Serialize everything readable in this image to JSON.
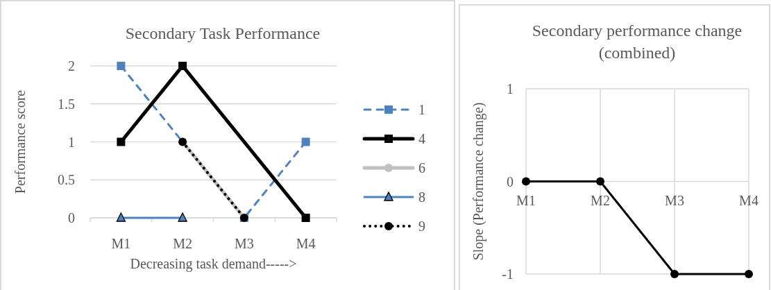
{
  "chart_data": [
    {
      "type": "line",
      "title": "Secondary Task Performance",
      "xlabel": "Decreasing task demand----->",
      "ylabel": "Performance score",
      "categories": [
        "M1",
        "M2",
        "M3",
        "M4"
      ],
      "ylim": [
        0,
        2
      ],
      "yticks": [
        0,
        0.5,
        1,
        1.5,
        2
      ],
      "grid": "y",
      "legend": "right",
      "series": [
        {
          "name": "1",
          "color": "#4f81bd",
          "values": [
            2,
            null,
            0,
            1
          ],
          "marker": "square",
          "line_style": "dashed"
        },
        {
          "name": "4",
          "color": "#000000",
          "values": [
            1,
            2,
            null,
            0
          ],
          "marker": "square",
          "line_style": "solid"
        },
        {
          "name": "6",
          "color": "#c0c0c0",
          "values": [
            null,
            1,
            0,
            null
          ],
          "marker": "circle",
          "line_style": "solid"
        },
        {
          "name": "8",
          "color": "#4f81bd",
          "values": [
            0,
            0,
            null,
            null
          ],
          "marker": "triangle",
          "line_style": "solid"
        },
        {
          "name": "9",
          "color": "#000000",
          "values": [
            null,
            1,
            0,
            null
          ],
          "marker": "circle",
          "line_style": "dotted"
        }
      ]
    },
    {
      "type": "line",
      "title": "Secondary performance change (combined)",
      "ylabel": "Slope (Performance change)",
      "categories": [
        "M1",
        "M2",
        "M3",
        "M4"
      ],
      "ylim": [
        -1,
        1
      ],
      "yticks": [
        -1,
        0,
        1
      ],
      "grid": true,
      "legend": false,
      "marker": "circle",
      "line_style": "solid",
      "series": [
        {
          "color": "#000000",
          "values": [
            0,
            0,
            -1,
            -1
          ]
        }
      ]
    }
  ]
}
